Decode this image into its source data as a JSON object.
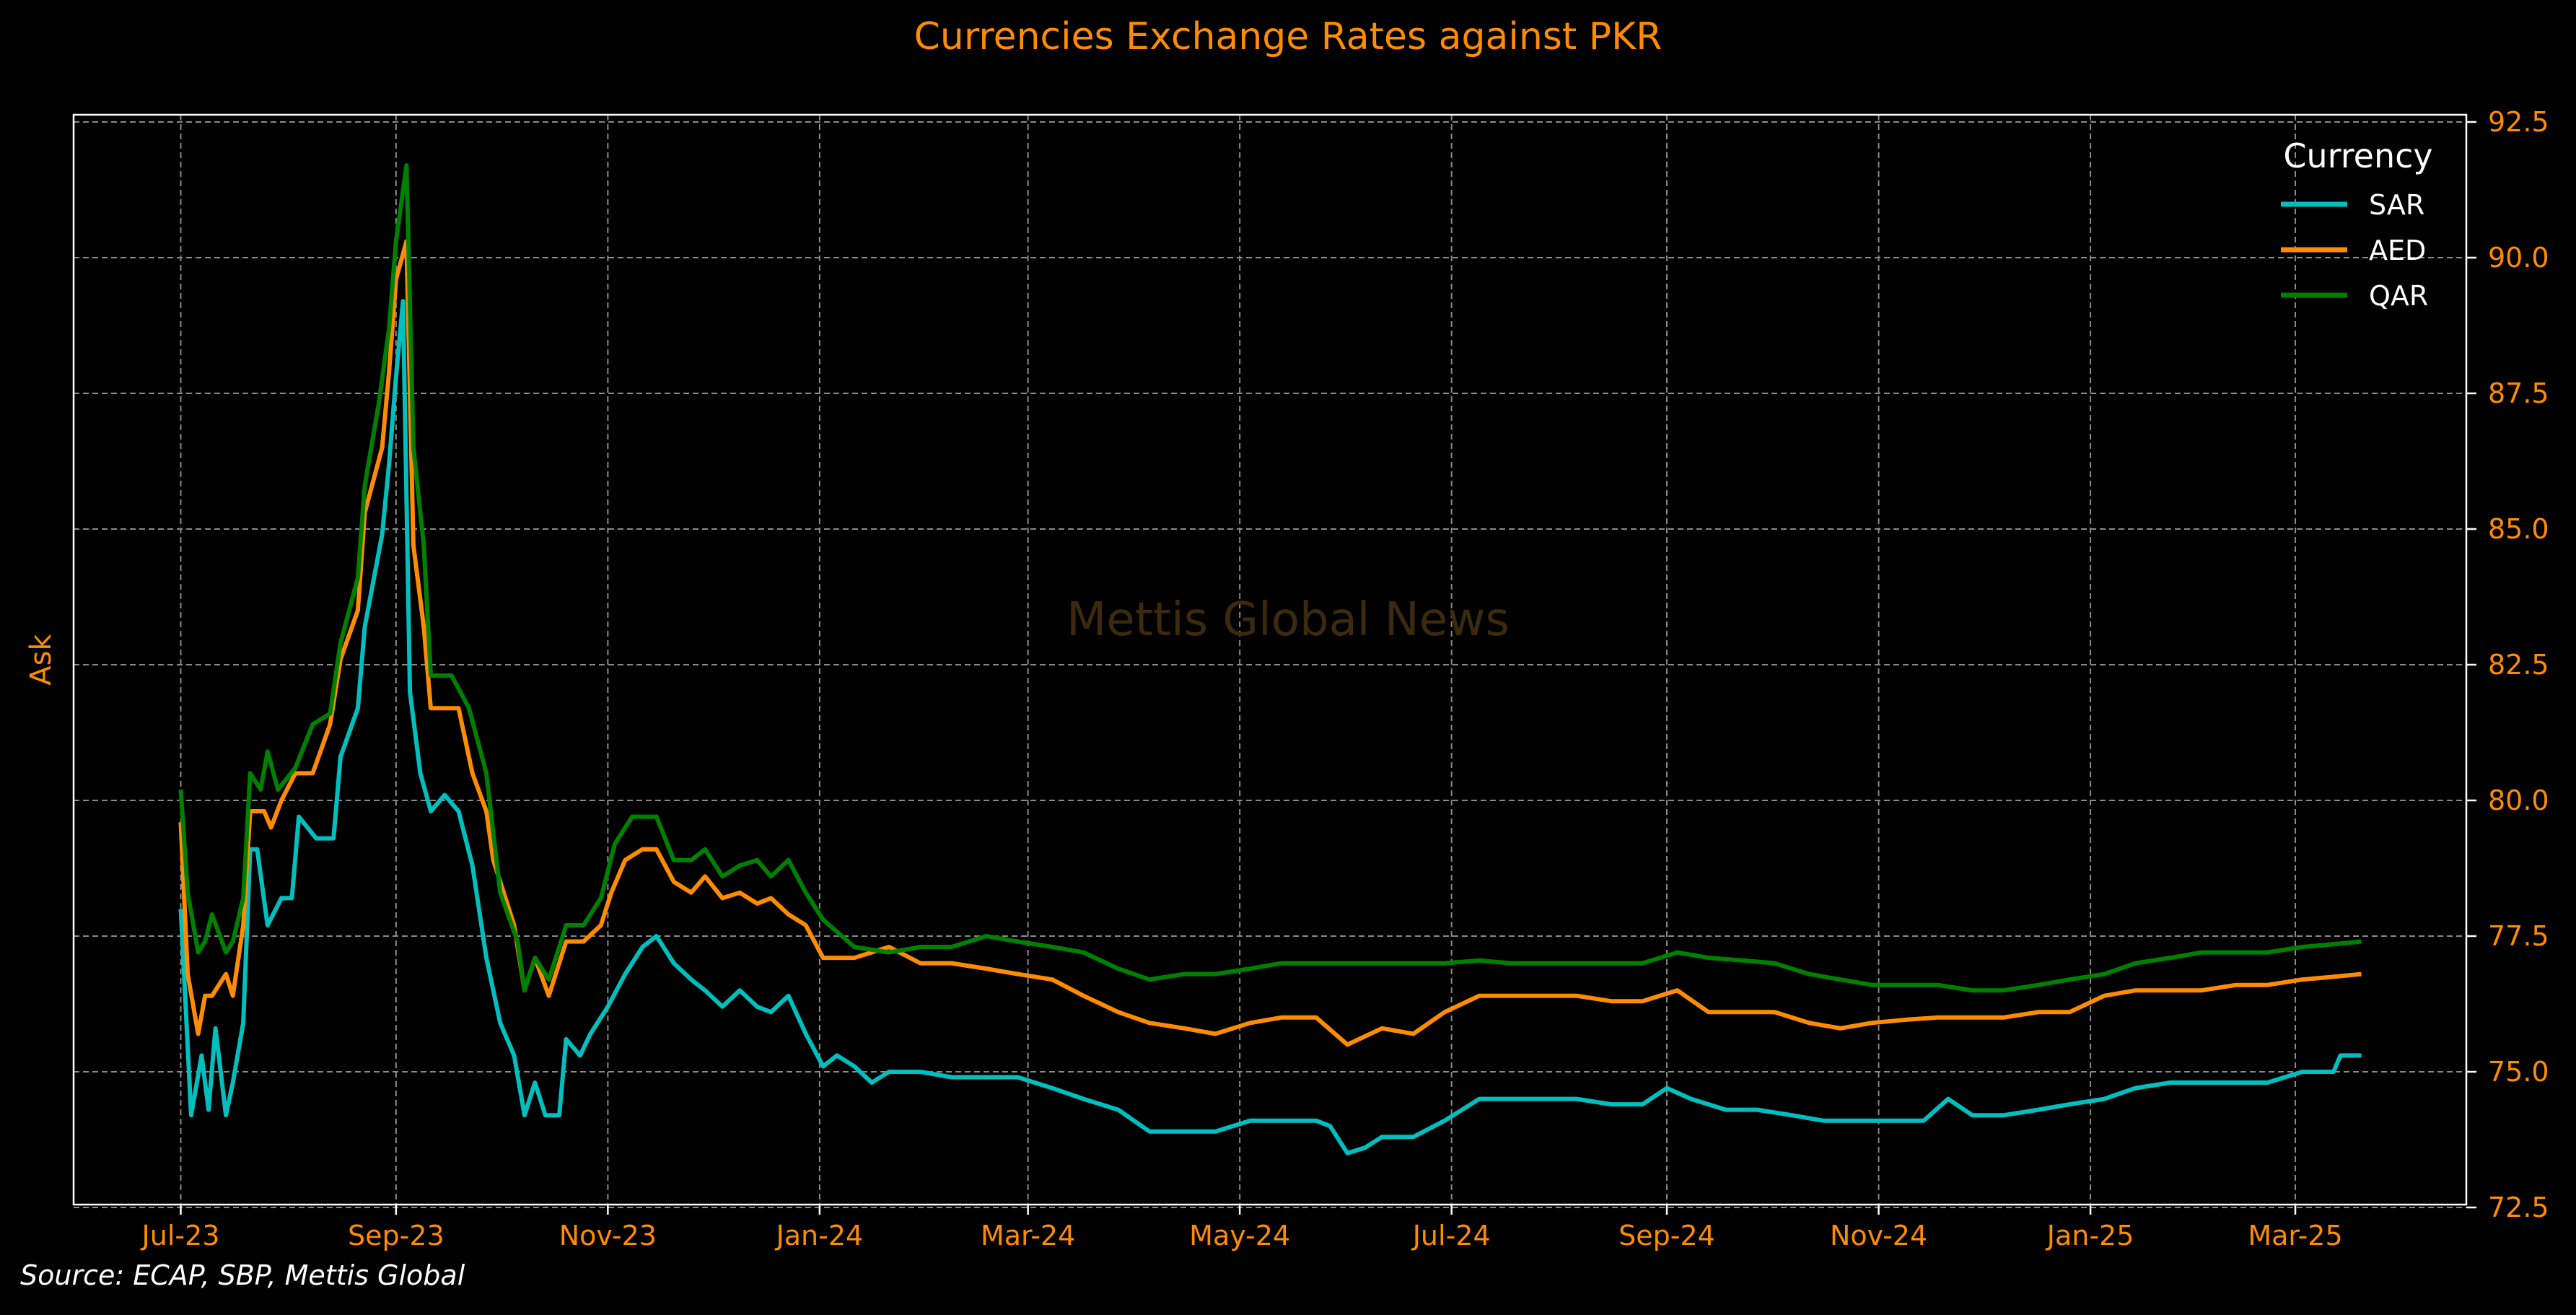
{
  "chart_data": {
    "type": "line",
    "title": "Currencies Exchange Rates against PKR",
    "ylabel": "Ask",
    "xlabel": "",
    "watermark": "Mettis Global News",
    "source": "Source: ECAP, SBP, Mettis Global",
    "ylim": [
      72.5,
      92.5
    ],
    "yticks": [
      72.5,
      75.0,
      77.5,
      80.0,
      82.5,
      85.0,
      87.5,
      90.0,
      92.5
    ],
    "ytick_labels": [
      "72.5",
      "75.0",
      "77.5",
      "80.0",
      "82.5",
      "85.0",
      "87.5",
      "90.0",
      "92.5"
    ],
    "x_unit": "days since Jul-23 start",
    "xlim": [
      -30,
      680
    ],
    "xticks": [
      0,
      62,
      123,
      184,
      244,
      305,
      366,
      428,
      489,
      550,
      609
    ],
    "xtick_labels": [
      "Jul-23",
      "Sep-23",
      "Nov-23",
      "Jan-24",
      "Mar-24",
      "May-24",
      "Jul-24",
      "Sep-24",
      "Nov-24",
      "Jan-25",
      "Mar-25"
    ],
    "grid": true,
    "legend": {
      "title": "Currency",
      "placement": "top-right"
    },
    "colors": {
      "background": "#000000",
      "accent": "#ff8c00",
      "text": "#ffffff",
      "grid": "#8a8a8a",
      "watermark": "#3d2a0e"
    },
    "series": [
      {
        "name": "SAR",
        "color": "#00bfbf",
        "x": [
          0,
          3,
          6,
          8,
          10,
          13,
          15,
          18,
          20,
          22,
          25,
          29,
          32,
          34,
          39,
          44,
          46,
          51,
          53,
          58,
          60,
          62,
          64,
          66,
          69,
          72,
          76,
          80,
          84,
          88,
          92,
          96,
          99,
          102,
          105,
          109,
          111,
          115,
          118,
          123,
          128,
          133,
          137,
          142,
          147,
          151,
          156,
          161,
          166,
          170,
          175,
          180,
          185,
          189,
          194,
          199,
          204,
          213,
          222,
          232,
          241,
          251,
          260,
          270,
          279,
          289,
          298,
          308,
          317,
          327,
          331,
          336,
          341,
          346,
          355,
          364,
          374,
          383,
          393,
          402,
          412,
          421,
          428,
          435,
          445,
          454,
          464,
          473,
          483,
          492,
          502,
          509,
          516,
          525,
          535,
          544,
          554,
          563,
          573,
          582,
          592,
          601,
          611,
          620,
          622,
          628
        ],
        "y": [
          78.0,
          74.2,
          75.3,
          74.3,
          75.8,
          74.2,
          74.8,
          75.9,
          79.1,
          79.1,
          77.7,
          78.2,
          78.2,
          79.7,
          79.3,
          79.3,
          80.8,
          81.7,
          83.2,
          84.9,
          86.2,
          87.8,
          89.2,
          82.0,
          80.5,
          79.8,
          80.1,
          79.8,
          78.8,
          77.1,
          75.9,
          75.3,
          74.2,
          74.8,
          74.2,
          74.2,
          75.6,
          75.3,
          75.7,
          76.2,
          76.8,
          77.3,
          77.5,
          77.0,
          76.7,
          76.5,
          76.2,
          76.5,
          76.2,
          76.1,
          76.4,
          75.7,
          75.1,
          75.3,
          75.1,
          74.8,
          75.0,
          75.0,
          74.9,
          74.9,
          74.9,
          74.7,
          74.5,
          74.3,
          73.9,
          73.9,
          73.9,
          74.1,
          74.1,
          74.1,
          74.0,
          73.5,
          73.6,
          73.8,
          73.8,
          74.1,
          74.5,
          74.5,
          74.5,
          74.5,
          74.4,
          74.4,
          74.7,
          74.5,
          74.3,
          74.3,
          74.2,
          74.1,
          74.1,
          74.1,
          74.1,
          74.5,
          74.2,
          74.2,
          74.3,
          74.4,
          74.5,
          74.7,
          74.8,
          74.8,
          74.8,
          74.8,
          75.0,
          75.0,
          75.3,
          75.3
        ]
      },
      {
        "name": "AED",
        "color": "#ff8c00",
        "x": [
          0,
          2,
          5,
          7,
          9,
          13,
          15,
          18,
          20,
          24,
          26,
          29,
          33,
          38,
          43,
          46,
          51,
          53,
          58,
          60,
          62,
          65,
          67,
          70,
          72,
          76,
          80,
          84,
          88,
          90,
          96,
          99,
          102,
          106,
          111,
          116,
          121,
          124,
          128,
          133,
          137,
          142,
          147,
          151,
          156,
          161,
          166,
          170,
          175,
          180,
          185,
          194,
          204,
          213,
          222,
          232,
          241,
          251,
          260,
          270,
          279,
          289,
          298,
          308,
          317,
          327,
          336,
          346,
          355,
          364,
          374,
          383,
          393,
          402,
          412,
          421,
          431,
          440,
          450,
          459,
          469,
          478,
          487,
          497,
          506,
          516,
          525,
          535,
          544,
          554,
          563,
          573,
          582,
          592,
          601,
          611,
          620,
          628
        ],
        "y": [
          79.6,
          76.8,
          75.7,
          76.4,
          76.4,
          76.8,
          76.4,
          77.7,
          79.8,
          79.8,
          79.5,
          80.0,
          80.5,
          80.5,
          81.4,
          82.6,
          83.5,
          85.3,
          86.5,
          87.9,
          89.6,
          90.3,
          84.7,
          83.2,
          81.7,
          81.7,
          81.7,
          80.5,
          79.8,
          78.9,
          77.7,
          76.5,
          77.1,
          76.4,
          77.4,
          77.4,
          77.7,
          78.3,
          78.9,
          79.1,
          79.1,
          78.5,
          78.3,
          78.6,
          78.2,
          78.3,
          78.1,
          78.2,
          77.9,
          77.7,
          77.1,
          77.1,
          77.3,
          77.0,
          77.0,
          76.9,
          76.8,
          76.7,
          76.4,
          76.1,
          75.9,
          75.8,
          75.7,
          75.9,
          76.0,
          76.0,
          75.5,
          75.8,
          75.7,
          76.1,
          76.4,
          76.4,
          76.4,
          76.4,
          76.3,
          76.3,
          76.5,
          76.1,
          76.1,
          76.1,
          75.9,
          75.8,
          75.9,
          75.96,
          76.0,
          76.0,
          76.0,
          76.1,
          76.1,
          76.4,
          76.5,
          76.5,
          76.5,
          76.6,
          76.6,
          76.7,
          76.75,
          76.8
        ]
      },
      {
        "name": "QAR",
        "color": "#008000",
        "x": [
          0,
          2,
          5,
          7,
          9,
          13,
          15,
          18,
          20,
          23,
          25,
          28,
          33,
          38,
          43,
          46,
          51,
          53,
          57,
          60,
          62,
          65,
          67,
          70,
          72,
          78,
          83,
          88,
          92,
          97,
          99,
          102,
          106,
          111,
          116,
          121,
          125,
          130,
          137,
          142,
          147,
          151,
          156,
          161,
          166,
          170,
          175,
          180,
          185,
          194,
          204,
          213,
          222,
          232,
          241,
          251,
          260,
          270,
          279,
          289,
          298,
          308,
          317,
          327,
          336,
          346,
          355,
          364,
          374,
          383,
          393,
          402,
          412,
          421,
          431,
          440,
          450,
          459,
          469,
          478,
          487,
          497,
          506,
          516,
          525,
          535,
          544,
          554,
          563,
          573,
          582,
          592,
          601,
          611,
          620,
          628
        ],
        "y": [
          80.2,
          78.3,
          77.2,
          77.4,
          77.9,
          77.2,
          77.4,
          78.2,
          80.5,
          80.2,
          80.9,
          80.2,
          80.6,
          81.4,
          81.6,
          82.9,
          84.1,
          85.8,
          87.3,
          88.7,
          90.3,
          91.7,
          86.5,
          84.7,
          82.3,
          82.3,
          81.7,
          80.5,
          78.3,
          77.4,
          76.5,
          77.1,
          76.7,
          77.7,
          77.7,
          78.2,
          79.2,
          79.7,
          79.7,
          78.9,
          78.9,
          79.1,
          78.6,
          78.8,
          78.9,
          78.6,
          78.9,
          78.3,
          77.8,
          77.3,
          77.2,
          77.3,
          77.3,
          77.5,
          77.4,
          77.3,
          77.2,
          76.9,
          76.7,
          76.8,
          76.8,
          76.9,
          77.0,
          77.0,
          77.0,
          77.0,
          77.0,
          77.0,
          77.05,
          77.0,
          77.0,
          77.0,
          77.0,
          77.0,
          77.2,
          77.1,
          77.05,
          77.0,
          76.8,
          76.7,
          76.6,
          76.6,
          76.6,
          76.5,
          76.5,
          76.6,
          76.7,
          76.8,
          77.0,
          77.1,
          77.2,
          77.2,
          77.2,
          77.3,
          77.35,
          77.4
        ]
      }
    ]
  }
}
